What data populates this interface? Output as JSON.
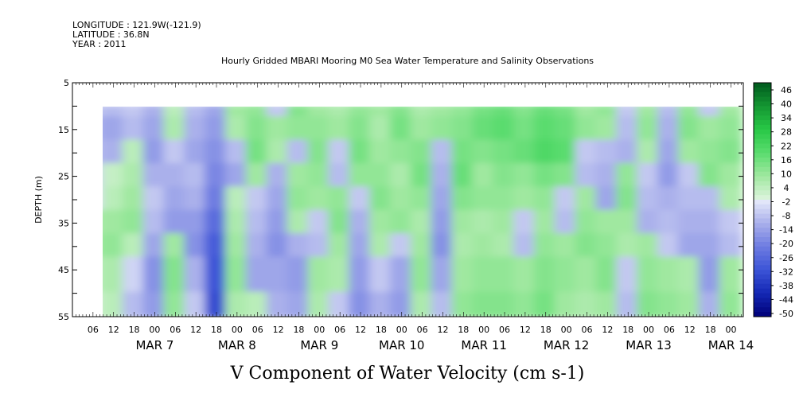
{
  "header": {
    "longitude": "LONGITUDE : 121.9W(-121.9)",
    "latitude": "LATITUDE : 36.8N",
    "year": "YEAR : 2011"
  },
  "chart_data": {
    "type": "heatmap",
    "title": "Hourly Gridded MBARI Mooring M0 Sea Water Temperature and Salinity Observations",
    "xlabel": "V Component of Water Velocity (cm s-1)",
    "ylabel": "DEPTH (m)",
    "ylim": [
      5,
      55
    ],
    "y_inverted": true,
    "y_ticks": [
      5,
      15,
      25,
      35,
      45,
      55
    ],
    "data_depth_range": [
      10,
      55
    ],
    "x_hour_ticks": [
      "06",
      "12",
      "18",
      "00",
      "06",
      "12",
      "18",
      "00",
      "06",
      "12",
      "18",
      "00",
      "06",
      "12",
      "18",
      "00",
      "06",
      "12",
      "18",
      "00",
      "06",
      "12",
      "18",
      "00",
      "06",
      "12",
      "18",
      "00",
      "06",
      "12",
      "18",
      "00"
    ],
    "x_day_labels": [
      "MAR  7",
      "MAR  8",
      "MAR  9",
      "MAR 10",
      "MAR 11",
      "MAR 12",
      "MAR 13",
      "MAR 14"
    ],
    "colorbar": {
      "labels": [
        "46",
        "40",
        "34",
        "28",
        "22",
        "16",
        "10",
        "4",
        "-2",
        "-8",
        "-14",
        "-20",
        "-26",
        "-32",
        "-38",
        "-44",
        "-50"
      ],
      "range": [
        -50,
        50
      ],
      "negative_color": "#0000b0",
      "positive_color": "#00802a",
      "zero_color": "#e8f4e8"
    },
    "columns": [
      {
        "day": 6.25,
        "v": [
          -6,
          -10,
          -8,
          -4,
          -2,
          8,
          10,
          6,
          2
        ]
      },
      {
        "day": 6.5,
        "v": [
          -8,
          -12,
          -10,
          4,
          6,
          10,
          12,
          8,
          6
        ]
      },
      {
        "day": 6.75,
        "v": [
          -6,
          -8,
          6,
          8,
          10,
          12,
          6,
          -4,
          -8
        ]
      },
      {
        "day": 7.0,
        "v": [
          -10,
          -12,
          -14,
          -10,
          -6,
          -8,
          -12,
          -16,
          -14
        ]
      },
      {
        "day": 7.25,
        "v": [
          6,
          8,
          -6,
          -10,
          -12,
          -14,
          10,
          14,
          12
        ]
      },
      {
        "day": 7.5,
        "v": [
          -8,
          -10,
          -12,
          -8,
          -10,
          -14,
          -16,
          -10,
          -6
        ]
      },
      {
        "day": 7.75,
        "v": [
          -12,
          -14,
          -16,
          -18,
          -20,
          -24,
          -28,
          -30,
          -32
        ]
      },
      {
        "day": 8.0,
        "v": [
          10,
          8,
          -8,
          -12,
          6,
          8,
          10,
          12,
          8
        ]
      },
      {
        "day": 8.25,
        "v": [
          12,
          14,
          16,
          10,
          -6,
          -8,
          -10,
          -12,
          6
        ]
      },
      {
        "day": 8.5,
        "v": [
          -6,
          10,
          8,
          -10,
          -12,
          -14,
          -16,
          -12,
          -10
        ]
      },
      {
        "day": 8.75,
        "v": [
          14,
          12,
          -8,
          10,
          12,
          8,
          -10,
          -14,
          -12
        ]
      },
      {
        "day": 9.0,
        "v": [
          10,
          12,
          14,
          12,
          10,
          -6,
          -8,
          10,
          8
        ]
      },
      {
        "day": 9.25,
        "v": [
          8,
          10,
          -6,
          -8,
          12,
          14,
          10,
          8,
          -6
        ]
      },
      {
        "day": 9.5,
        "v": [
          12,
          14,
          16,
          12,
          -6,
          -10,
          -12,
          -14,
          -16
        ]
      },
      {
        "day": 9.75,
        "v": [
          10,
          8,
          10,
          12,
          14,
          10,
          8,
          -6,
          -10
        ]
      },
      {
        "day": 10.0,
        "v": [
          14,
          16,
          12,
          8,
          10,
          12,
          -6,
          -12,
          -14
        ]
      },
      {
        "day": 10.25,
        "v": [
          8,
          10,
          14,
          16,
          12,
          8,
          10,
          12,
          8
        ]
      },
      {
        "day": 10.5,
        "v": [
          10,
          12,
          -8,
          -10,
          -12,
          -14,
          -16,
          -12,
          -8
        ]
      },
      {
        "day": 10.75,
        "v": [
          12,
          14,
          16,
          18,
          14,
          10,
          8,
          10,
          12
        ]
      },
      {
        "day": 11.0,
        "v": [
          16,
          18,
          14,
          10,
          12,
          8,
          10,
          12,
          14
        ]
      },
      {
        "day": 11.25,
        "v": [
          18,
          20,
          16,
          14,
          12,
          10,
          8,
          12,
          14
        ]
      },
      {
        "day": 11.5,
        "v": [
          14,
          16,
          18,
          12,
          10,
          -6,
          -8,
          10,
          12
        ]
      },
      {
        "day": 11.75,
        "v": [
          18,
          20,
          22,
          16,
          12,
          10,
          12,
          14,
          16
        ]
      },
      {
        "day": 12.0,
        "v": [
          16,
          18,
          20,
          14,
          -6,
          -8,
          10,
          12,
          10
        ]
      },
      {
        "day": 12.25,
        "v": [
          10,
          12,
          -6,
          -8,
          10,
          12,
          14,
          10,
          8
        ]
      },
      {
        "day": 12.5,
        "v": [
          12,
          10,
          -8,
          -10,
          -12,
          10,
          12,
          14,
          10
        ]
      },
      {
        "day": 12.75,
        "v": [
          -6,
          -8,
          -10,
          12,
          14,
          10,
          8,
          -6,
          -8
        ]
      },
      {
        "day": 13.0,
        "v": [
          10,
          12,
          8,
          -6,
          -8,
          -10,
          10,
          12,
          14
        ]
      },
      {
        "day": 13.25,
        "v": [
          -8,
          -10,
          -12,
          -14,
          -10,
          -8,
          -6,
          10,
          12
        ]
      },
      {
        "day": 13.5,
        "v": [
          12,
          14,
          10,
          -6,
          -8,
          -10,
          -12,
          8,
          10
        ]
      },
      {
        "day": 13.75,
        "v": [
          -6,
          10,
          12,
          14,
          -8,
          -10,
          -12,
          -14,
          -10
        ]
      },
      {
        "day": 14.0,
        "v": [
          10,
          12,
          14,
          10,
          8,
          -6,
          -8,
          10,
          12
        ]
      }
    ],
    "column_depths": [
      10,
      15,
      20,
      25,
      30,
      35,
      40,
      45,
      55
    ]
  }
}
